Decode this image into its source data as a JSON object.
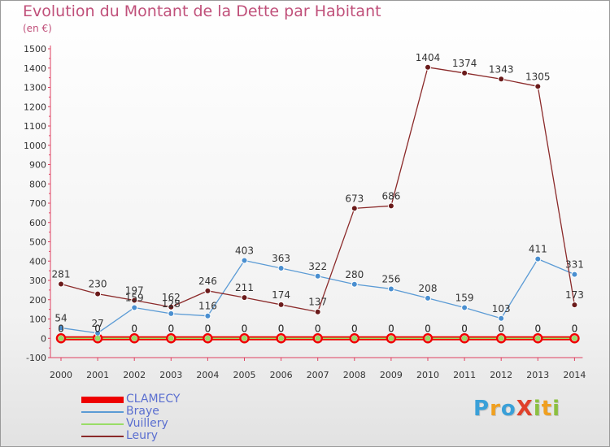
{
  "title": "Evolution du Montant de la Dette par Habitant",
  "subtitle": "(en €)",
  "logo": {
    "letters": [
      {
        "ch": "P",
        "color": "#3aa0d8"
      },
      {
        "ch": "r",
        "color": "#f0a020"
      },
      {
        "ch": "o",
        "color": "#3aa0d8"
      },
      {
        "ch": "X",
        "color": "#e0402a"
      },
      {
        "ch": "i",
        "color": "#8cc040"
      },
      {
        "ch": "t",
        "color": "#f0a020"
      },
      {
        "ch": "i",
        "color": "#8cc040"
      }
    ]
  },
  "chart_data": {
    "type": "line",
    "x": [
      "2000",
      "2001",
      "2002",
      "2003",
      "2004",
      "2005",
      "2006",
      "2007",
      "2008",
      "2009",
      "2010",
      "2011",
      "2012",
      "2013",
      "2014"
    ],
    "ylim": [
      -100,
      1500
    ],
    "yticks": [
      -100,
      0,
      100,
      200,
      300,
      400,
      500,
      600,
      700,
      800,
      900,
      1000,
      1100,
      1200,
      1300,
      1400,
      1500
    ],
    "grid": false,
    "legend_position": "bottom-left",
    "series": [
      {
        "name": "CLAMECY",
        "color": "#ee0000",
        "values": [
          0,
          0,
          0,
          0,
          0,
          0,
          0,
          0,
          0,
          0,
          0,
          0,
          0,
          0,
          0
        ],
        "labels": [
          "0",
          "0",
          "0",
          "0",
          "0",
          "0",
          "0",
          "0",
          "0",
          "0",
          "0",
          "0",
          "0",
          "0",
          "0"
        ]
      },
      {
        "name": "Braye",
        "color": "#5b9bd5",
        "values": [
          54,
          27,
          159,
          128,
          116,
          403,
          363,
          322,
          280,
          256,
          208,
          159,
          103,
          411,
          331
        ],
        "labels": [
          "54",
          "27",
          "159",
          "128",
          "116",
          "403",
          "363",
          "322",
          "280",
          "256",
          "208",
          "159",
          "103",
          "411",
          "331"
        ]
      },
      {
        "name": "Vuillery",
        "color": "#99dd66",
        "values": [
          0,
          0,
          0,
          0,
          0,
          0,
          0,
          0,
          0,
          0,
          0,
          0,
          0,
          0,
          0
        ],
        "labels": [
          "0",
          "0",
          "0",
          "0",
          "0",
          "0",
          "0",
          "0",
          "0",
          "0",
          "0",
          "0",
          "0",
          "0",
          "0"
        ]
      },
      {
        "name": "Leury",
        "color": "#8b2a2a",
        "values": [
          281,
          230,
          197,
          162,
          246,
          211,
          174,
          137,
          673,
          686,
          1404,
          1374,
          1343,
          1305,
          173
        ],
        "labels": [
          "281",
          "230",
          "197",
          "162",
          "246",
          "211",
          "174",
          "137",
          "673",
          "686",
          "1404",
          "1374",
          "1343",
          "1305",
          "173"
        ]
      }
    ]
  }
}
